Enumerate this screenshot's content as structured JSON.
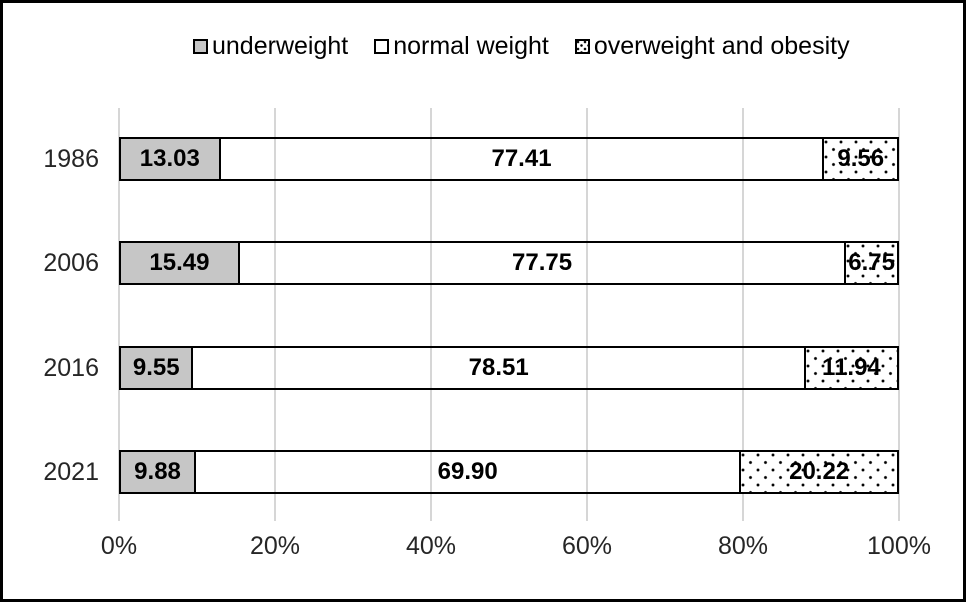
{
  "chart_data": {
    "type": "bar",
    "orientation": "horizontal",
    "stacked": true,
    "title": "",
    "categories": [
      "1986",
      "2006",
      "2016",
      "2021"
    ],
    "series": [
      {
        "name": "underweight",
        "pattern": "solid-gray",
        "values": [
          13.03,
          15.49,
          9.55,
          9.88
        ]
      },
      {
        "name": "normal weight",
        "pattern": "solid-white",
        "values": [
          77.41,
          77.75,
          78.51,
          69.9
        ]
      },
      {
        "name": "overweight and obesity",
        "pattern": "dotted",
        "values": [
          9.56,
          6.75,
          11.94,
          20.22
        ]
      }
    ],
    "value_label_decimals": 2,
    "x_ticks": [
      "0%",
      "20%",
      "40%",
      "60%",
      "80%",
      "100%"
    ],
    "xlim": [
      0,
      100
    ],
    "grid": "vertical",
    "legend_position": "top"
  },
  "colors": {
    "underweight_fill": "#c6c6c6",
    "normal_weight_fill": "#ffffff",
    "dot_color": "#000000",
    "segment_border": "#000000",
    "gridline": "#d6d6d6",
    "axis_text": "#262626",
    "value_text": "#000000",
    "frame_border": "#000000",
    "background": "#ffffff"
  }
}
